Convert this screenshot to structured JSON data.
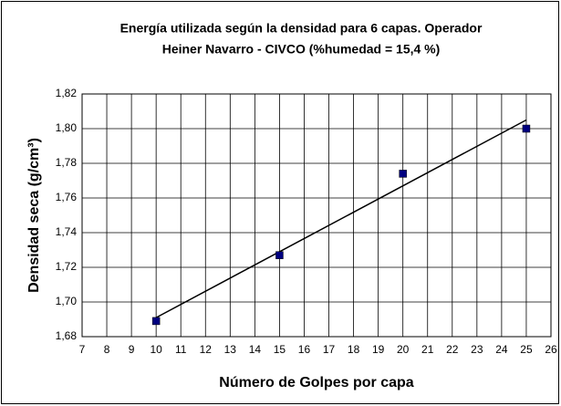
{
  "chart_data": {
    "type": "scatter",
    "title": [
      "Energía utilizada según la densidad para 6 capas. Operador",
      "Heiner Navarro - CIVCO (%humedad = 15,4 %)"
    ],
    "xlabel": "Número de Golpes por capa",
    "ylabel": "Densidad seca (g/cm³)",
    "x": [
      10,
      15,
      20,
      25
    ],
    "series": [
      {
        "color": "#000080",
        "values": [
          1.689,
          1.727,
          1.774,
          1.8
        ]
      }
    ],
    "trendline": {
      "x": [
        10,
        25
      ],
      "values": [
        1.691,
        1.805
      ],
      "color": "#000000"
    },
    "xlim": [
      7,
      26
    ],
    "xticks": [
      7,
      8,
      9,
      10,
      11,
      12,
      13,
      14,
      15,
      16,
      17,
      18,
      19,
      20,
      21,
      22,
      23,
      24,
      25,
      26
    ],
    "ylim": [
      1.68,
      1.82
    ],
    "yticks": [
      {
        "value": 1.68,
        "label": "1,68"
      },
      {
        "value": 1.7,
        "label": "1,70"
      },
      {
        "value": 1.72,
        "label": "1,72"
      },
      {
        "value": 1.74,
        "label": "1,74"
      },
      {
        "value": 1.76,
        "label": "1,76"
      },
      {
        "value": 1.78,
        "label": "1,78"
      },
      {
        "value": 1.8,
        "label": "1,80"
      },
      {
        "value": 1.82,
        "label": "1,82"
      }
    ],
    "grid": true
  }
}
